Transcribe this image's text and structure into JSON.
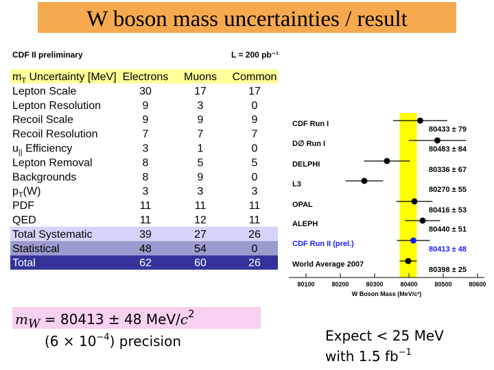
{
  "header": {
    "title": "W boson mass uncertainties / result"
  },
  "table": {
    "caption": "CDF II preliminary",
    "lumi": "L = 200 pb⁻¹",
    "columns": [
      {
        "base": "m",
        "sub": "T",
        "rest": " Uncertainty [MeV]"
      },
      "Electrons",
      "Muons",
      "Common"
    ],
    "rows": [
      {
        "label": "Lepton Scale",
        "values": [
          "30",
          "17",
          "17"
        ]
      },
      {
        "label": "Lepton Resolution",
        "values": [
          "9",
          "3",
          "0"
        ]
      },
      {
        "label": "Recoil Scale",
        "values": [
          "9",
          "9",
          "9"
        ]
      },
      {
        "label": "Recoil Resolution",
        "values": [
          "7",
          "7",
          "7"
        ]
      },
      {
        "label": {
          "base": "u",
          "sub": "||",
          "rest": " Efficiency"
        },
        "values": [
          "3",
          "1",
          "0"
        ]
      },
      {
        "label": "Lepton Removal",
        "values": [
          "8",
          "5",
          "5"
        ]
      },
      {
        "label": "Backgrounds",
        "values": [
          "8",
          "9",
          "0"
        ]
      },
      {
        "label": {
          "base": "p",
          "sub": "T",
          "rest": "(W)"
        },
        "values": [
          "3",
          "3",
          "3"
        ]
      },
      {
        "label": "PDF",
        "values": [
          "11",
          "11",
          "11"
        ]
      },
      {
        "label": "QED",
        "values": [
          "11",
          "12",
          "11"
        ]
      },
      {
        "label": "Total Systematic",
        "values": [
          "39",
          "27",
          "26"
        ]
      },
      {
        "label": "Statistical",
        "values": [
          "48",
          "54",
          "0"
        ]
      },
      {
        "label": "Total",
        "values": [
          "62",
          "60",
          "26"
        ]
      }
    ]
  },
  "chart_data": {
    "type": "errorbar",
    "categories": [
      "CDF Run I",
      "D∅ Run I",
      "DELPHI",
      "L3",
      "OPAL",
      "ALEPH",
      "CDF Run II (prel.)",
      "World Average 2007"
    ],
    "values": [
      80433,
      80483,
      80336,
      80270,
      80416,
      80440,
      80413,
      80398
    ],
    "errors": [
      79,
      84,
      67,
      55,
      53,
      51,
      48,
      25
    ],
    "value_labels": [
      "80433 ± 79",
      "80483 ± 84",
      "80336 ± 67",
      "80270 ± 55",
      "80416 ± 53",
      "80440 ± 51",
      "80413 ± 48",
      "80398 ± 25"
    ],
    "colors": [
      "#000000",
      "#000000",
      "#000000",
      "#000000",
      "#000000",
      "#000000",
      "#1a1aff",
      "#000000"
    ],
    "band_color": "#ffff00",
    "xlim": [
      80050,
      80620
    ],
    "xticks": [
      80100,
      80200,
      80300,
      80400,
      80500,
      80600
    ],
    "xlabel": "W Boson Mass (MeV/c²)"
  },
  "result": {
    "lhs": "m",
    "lhs_sub": "W",
    "rhs": " = 80413 ± 48 MeV/",
    "rhs_c": "c",
    "rhs_sup": "2",
    "precision_pre": "(6 × 10",
    "precision_sup": "−4",
    "precision_post": ") precision"
  },
  "expect": {
    "line1": "Expect < 25 MeV",
    "line2": "with 1.5 fb",
    "line2_sup": "−1"
  }
}
